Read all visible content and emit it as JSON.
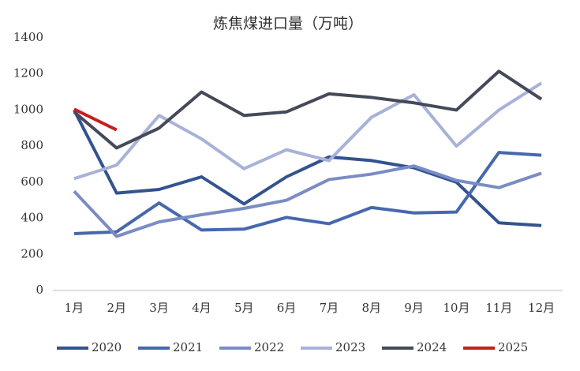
{
  "chart_data": {
    "type": "line",
    "title": "炼焦煤进口量（万吨）",
    "categories": [
      "1月",
      "2月",
      "3月",
      "4月",
      "5月",
      "6月",
      "7月",
      "8月",
      "9月",
      "10月",
      "11月",
      "12月"
    ],
    "ylim": [
      0,
      1400
    ],
    "yticks": [
      0,
      200,
      400,
      600,
      800,
      1000,
      1200,
      1400
    ],
    "grid": false,
    "legend": "bottom",
    "series": [
      {
        "name": "2020",
        "color": "#33538f",
        "values": [
          1000,
          540,
          560,
          630,
          480,
          630,
          740,
          720,
          680,
          600,
          375,
          360
        ]
      },
      {
        "name": "2021",
        "color": "#4768ad",
        "values": [
          315,
          325,
          485,
          335,
          340,
          405,
          370,
          460,
          430,
          435,
          765,
          750
        ]
      },
      {
        "name": "2022",
        "color": "#7a8cc3",
        "values": [
          550,
          300,
          380,
          420,
          455,
          500,
          615,
          645,
          690,
          610,
          570,
          650
        ]
      },
      {
        "name": "2023",
        "color": "#a8b2d8",
        "values": [
          620,
          695,
          970,
          840,
          675,
          780,
          720,
          960,
          1085,
          800,
          1000,
          1150
        ]
      },
      {
        "name": "2024",
        "color": "#454a59",
        "values": [
          990,
          790,
          900,
          1100,
          970,
          990,
          1090,
          1070,
          1040,
          1000,
          1215,
          1060
        ]
      },
      {
        "name": "2025",
        "color": "#c81e1e",
        "values": [
          1005,
          890,
          null,
          null,
          null,
          null,
          null,
          null,
          null,
          null,
          null,
          null
        ]
      }
    ]
  }
}
